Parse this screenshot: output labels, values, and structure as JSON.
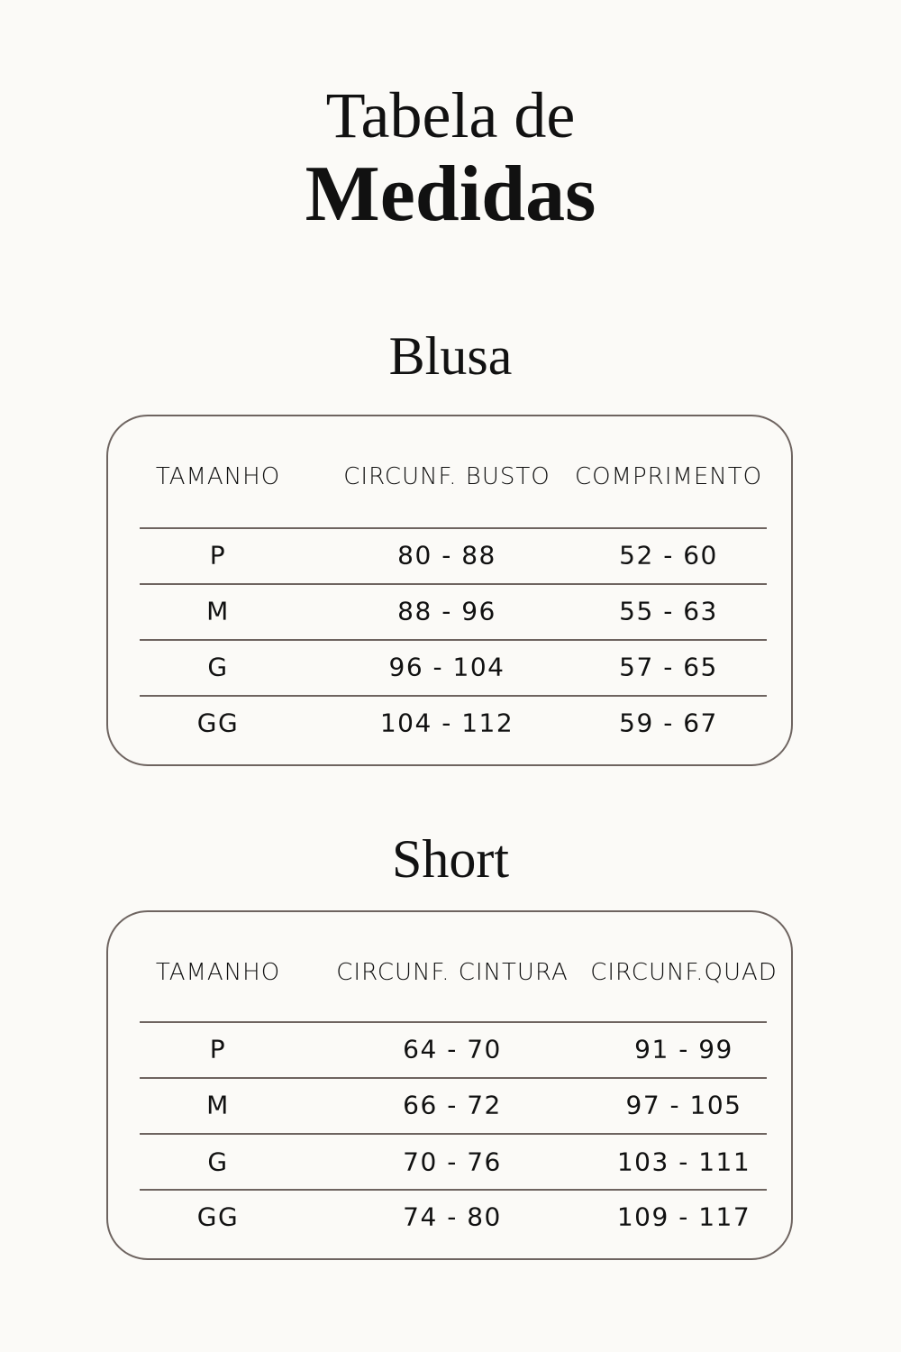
{
  "title": {
    "line1": "Tabela de",
    "line2": "Medidas"
  },
  "tables": [
    {
      "name": "Blusa",
      "headers": [
        "TAMANHO",
        "CIRCUNF. BUSTO",
        "COMPRIMENTO"
      ],
      "rows": [
        [
          "P",
          "80 - 88",
          "52 - 60"
        ],
        [
          "M",
          "88 - 96",
          "55 - 63"
        ],
        [
          "G",
          "96 - 104",
          "57 - 65"
        ],
        [
          "GG",
          "104 - 112",
          "59 - 67"
        ]
      ]
    },
    {
      "name": "Short",
      "headers": [
        "TAMANHO",
        "CIRCUNF. CINTURA",
        "CIRCUNF.QUAD"
      ],
      "rows": [
        [
          "P",
          "64 - 70",
          "91 - 99"
        ],
        [
          "M",
          "66 - 72",
          "97 - 105"
        ],
        [
          "G",
          "70 - 76",
          "103 - 111"
        ],
        [
          "GG",
          "74 - 80",
          "109 - 117"
        ]
      ]
    }
  ],
  "colors": {
    "background": "#fbfaf7",
    "border": "#6e6460",
    "text": "#111111"
  }
}
